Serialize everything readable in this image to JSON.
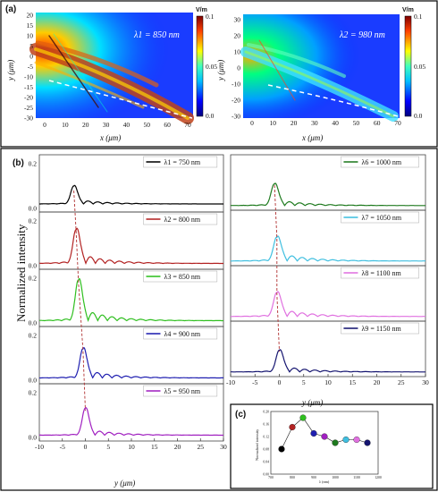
{
  "panel_a": {
    "label": "(a)",
    "maps": [
      {
        "lambda_label": "λ1 = 850 nm",
        "colorbar_unit": "V/m",
        "cb_ticks": [
          "0.1",
          "0.05",
          "0.0"
        ],
        "x_label": "x  (μm)",
        "y_label": "y  (μm)",
        "x_ticks": [
          "0",
          "10",
          "20",
          "30",
          "40",
          "50",
          "60",
          "70"
        ],
        "y_ticks": [
          "20",
          "15",
          "10",
          "5",
          "0",
          "-5",
          "-10",
          "-15",
          "-20",
          "-25",
          "-30"
        ]
      },
      {
        "lambda_label": "λ2 = 980 nm",
        "colorbar_unit": "V/m",
        "cb_ticks": [
          "0.1",
          "0.05",
          "0.0"
        ],
        "x_label": "x  (μm)",
        "y_label": "y  (μm)",
        "x_ticks": [
          "0",
          "10",
          "20",
          "30",
          "40",
          "50",
          "60",
          "70"
        ],
        "y_ticks": [
          "30",
          "20",
          "10",
          "0",
          "-10",
          "-20",
          "-30"
        ]
      }
    ]
  },
  "panel_b": {
    "label": "(b)",
    "y_label": "Normalized intensity",
    "x_label": "y  (μm)"
  },
  "panel_c": {
    "label": "(c)",
    "y_label": "Normalized intensity",
    "x_label": "λ (nm)"
  },
  "colors": {
    "s1": "#000000",
    "s2": "#b22222",
    "s3": "#2fbf1f",
    "s4": "#1f1fb0",
    "s5": "#a020c0",
    "s6": "#1e7a1e",
    "s7": "#3fbfe0",
    "s8": "#e070e0",
    "s9": "#141470"
  },
  "chart_data": [
    {
      "type": "line",
      "title": "",
      "xlabel": "y (μm)",
      "ylabel": "Normalized intensity",
      "xlim": [
        -10,
        30
      ],
      "ylim": [
        0,
        0.2
      ],
      "x_ticks": [
        -10,
        -5,
        0,
        5,
        10,
        15,
        20,
        25,
        30
      ],
      "y_ticks": [
        0.0,
        0.2
      ],
      "series": [
        {
          "name": "λ1 = 750 nm",
          "peak_y": -2.5,
          "peak": 0.08,
          "base": 0.02,
          "osc": 0.022
        },
        {
          "name": "λ2 = 800 nm",
          "peak_y": -2.0,
          "peak": 0.15,
          "base": 0.01,
          "osc": 0.05
        },
        {
          "name": "λ3 = 850 nm",
          "peak_y": -1.5,
          "peak": 0.18,
          "base": 0.01,
          "osc": 0.06
        },
        {
          "name": "λ4 = 900 nm",
          "peak_y": -0.5,
          "peak": 0.13,
          "base": 0.01,
          "osc": 0.04
        },
        {
          "name": "λ5 = 950 nm",
          "peak_y": 0.0,
          "peak": 0.12,
          "base": 0.01,
          "osc": 0.03
        }
      ]
    },
    {
      "type": "line",
      "title": "",
      "xlabel": "y (μm)",
      "ylabel": "Normalized intensity",
      "xlim": [
        -10,
        30
      ],
      "ylim": [
        0,
        0.2
      ],
      "x_ticks": [
        -10,
        -5,
        0,
        5,
        10,
        15,
        20,
        25,
        30
      ],
      "series": [
        {
          "name": "λ6 = 1000 nm",
          "peak_y": -1.0,
          "peak": 0.1,
          "base": 0.005,
          "osc": 0.03
        },
        {
          "name": "λ7 = 1050 nm",
          "peak_y": -0.5,
          "peak": 0.11,
          "base": 0.005,
          "osc": 0.04
        },
        {
          "name": "λ8 = 1100 nm",
          "peak_y": -0.5,
          "peak": 0.11,
          "base": 0.005,
          "osc": 0.04
        },
        {
          "name": "λ9 = 1150 nm",
          "peak_y": 0.0,
          "peak": 0.1,
          "base": 0.005,
          "osc": 0.03
        }
      ]
    },
    {
      "type": "scatter",
      "title": "",
      "xlabel": "λ (nm)",
      "ylabel": "Normalized intensity",
      "xlim": [
        700,
        1200
      ],
      "ylim": [
        0.0,
        0.2
      ],
      "x_ticks": [
        700,
        800,
        900,
        1000,
        1100,
        1200
      ],
      "y_ticks": [
        0.0,
        0.04,
        0.08,
        0.12,
        0.16,
        0.2
      ],
      "x": [
        750,
        800,
        850,
        900,
        950,
        1000,
        1050,
        1100,
        1150
      ],
      "y": [
        0.08,
        0.15,
        0.18,
        0.13,
        0.12,
        0.1,
        0.11,
        0.11,
        0.1
      ]
    }
  ]
}
